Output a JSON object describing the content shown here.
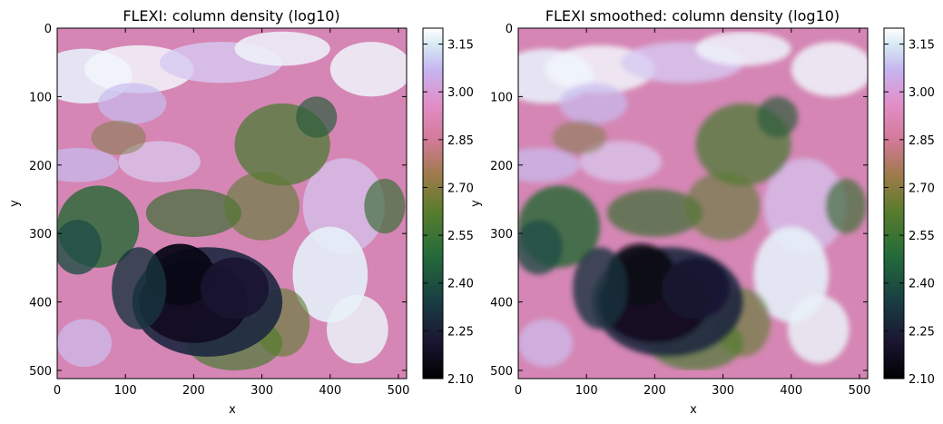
{
  "chart_data": [
    {
      "type": "heatmap",
      "title": "FLEXI: column density (log10)",
      "xlabel": "x",
      "ylabel": "y",
      "xlim": [
        0,
        512
      ],
      "ylim": [
        512,
        0
      ],
      "xticks": [
        "0",
        "100",
        "200",
        "300",
        "400",
        "500"
      ],
      "yticks": [
        "0",
        "100",
        "200",
        "300",
        "400",
        "500"
      ],
      "colormap": "cubehelix",
      "colorbar": {
        "range": [
          2.1,
          3.2
        ],
        "ticks": [
          "2.10",
          "2.25",
          "2.40",
          "2.55",
          "2.70",
          "2.85",
          "3.00",
          "3.15"
        ]
      },
      "smoothing": 0
    },
    {
      "type": "heatmap",
      "title": "FLEXI smoothed: column density (log10)",
      "xlabel": "x",
      "ylabel": "y",
      "xlim": [
        0,
        512
      ],
      "ylim": [
        512,
        0
      ],
      "xticks": [
        "0",
        "100",
        "200",
        "300",
        "400",
        "500"
      ],
      "yticks": [
        "0",
        "100",
        "200",
        "300",
        "400",
        "500"
      ],
      "colormap": "cubehelix",
      "colorbar": {
        "range": [
          2.1,
          3.2
        ],
        "ticks": [
          "2.10",
          "2.25",
          "2.40",
          "2.55",
          "2.70",
          "2.85",
          "3.00",
          "3.15"
        ]
      },
      "smoothing": 1
    }
  ]
}
